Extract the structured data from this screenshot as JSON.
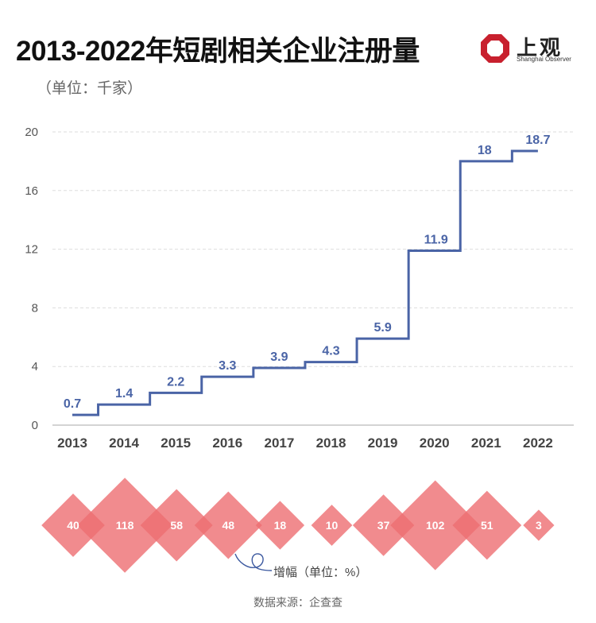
{
  "header": {
    "title": "2013-2022年短剧相关企业注册量",
    "unit": "（单位：千家）"
  },
  "logo": {
    "name_cn": "上观",
    "name_en": "Shanghai Observer"
  },
  "chart_data": [
    {
      "type": "line",
      "step": "post",
      "categories": [
        "2013",
        "2014",
        "2015",
        "2016",
        "2017",
        "2018",
        "2019",
        "2020",
        "2021",
        "2022"
      ],
      "values": [
        0.7,
        1.4,
        2.2,
        3.3,
        3.9,
        4.3,
        5.9,
        11.9,
        18,
        18.7
      ],
      "value_labels": [
        "0.7",
        "1.4",
        "2.2",
        "3.3",
        "3.9",
        "4.3",
        "5.9",
        "11.9",
        "18",
        "18.7"
      ],
      "ylim": [
        0,
        20
      ],
      "yticks": [
        0,
        4,
        8,
        12,
        16,
        20
      ],
      "grid": true,
      "line_color": "#4a64a6",
      "label_color": "#4a64a6"
    },
    {
      "type": "scatter",
      "marker": "diamond",
      "categories": [
        "2013",
        "2014",
        "2015",
        "2016",
        "2017",
        "2018",
        "2019",
        "2020",
        "2021",
        "2022"
      ],
      "values": [
        40,
        118,
        58,
        48,
        18,
        10,
        37,
        102,
        51,
        3
      ],
      "value_labels": [
        "40",
        "118",
        "58",
        "48",
        "18",
        "10",
        "37",
        "102",
        "51",
        "3"
      ],
      "annotation": "增幅（单位：%）",
      "color": "#ee6e72"
    }
  ],
  "footer": {
    "source": "数据来源：企查查"
  }
}
